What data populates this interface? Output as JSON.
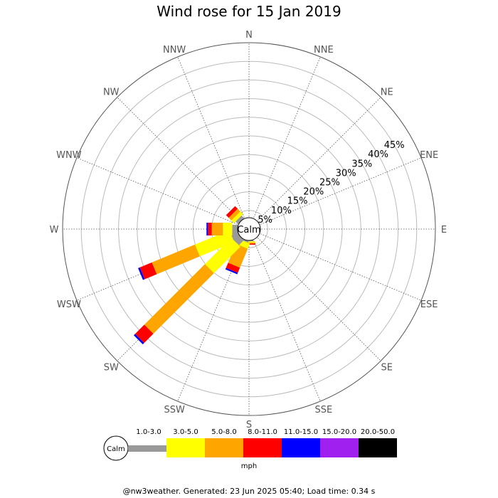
{
  "chart_data": {
    "type": "wind-rose",
    "title": "Wind rose for 15 Jan 2019",
    "directions": [
      "N",
      "NNE",
      "NE",
      "ENE",
      "E",
      "ESE",
      "SE",
      "SSE",
      "S",
      "SSW",
      "SW",
      "WSW",
      "W",
      "WNW",
      "NW",
      "NNW"
    ],
    "ring_labels": [
      "5%",
      "10%",
      "15%",
      "20%",
      "25%",
      "30%",
      "35%",
      "40%",
      "45%"
    ],
    "ring_values": [
      5,
      10,
      15,
      20,
      25,
      30,
      35,
      40,
      45
    ],
    "rmax": 50,
    "calm_label": "Calm",
    "calm_radius_pct": 3,
    "speed_bins": [
      {
        "label": "1.0-3.0",
        "color": "#999999"
      },
      {
        "label": "3.0-5.0",
        "color": "#ffff00"
      },
      {
        "label": "5.0-8.0",
        "color": "#ffa500"
      },
      {
        "label": "8.0-11.0",
        "color": "#ff0000"
      },
      {
        "label": "11.0-15.0",
        "color": "#0000ff"
      },
      {
        "label": "15.0-20.0",
        "color": "#a020f0"
      },
      {
        "label": "20.0-50.0",
        "color": "#000000"
      }
    ],
    "units": "mph",
    "series": [
      {
        "direction": "S",
        "values": [
          0.3,
          0.3,
          0.3,
          0.3,
          0,
          0,
          0
        ]
      },
      {
        "direction": "SSW",
        "values": [
          0.5,
          1.5,
          5.5,
          1.5,
          0.4,
          0,
          0
        ]
      },
      {
        "direction": "SW",
        "values": [
          2.0,
          10.0,
          23.0,
          3.5,
          0.5,
          0,
          0
        ]
      },
      {
        "direction": "WSW",
        "values": [
          2.0,
          10.0,
          12.5,
          3.5,
          0.5,
          0,
          0
        ]
      },
      {
        "direction": "W",
        "values": [
          1.5,
          2.5,
          3.0,
          1.0,
          0.4,
          0,
          0
        ]
      },
      {
        "direction": "NW",
        "values": [
          1.0,
          1.0,
          1.0,
          1.0,
          0,
          0,
          0
        ]
      },
      {
        "direction": "N",
        "values": [
          0,
          0,
          0,
          0,
          0,
          0,
          0
        ]
      }
    ]
  },
  "footer": "@nw3weather. Generated: 23 Jun 2025 05:40; Load time: 0.34 s"
}
